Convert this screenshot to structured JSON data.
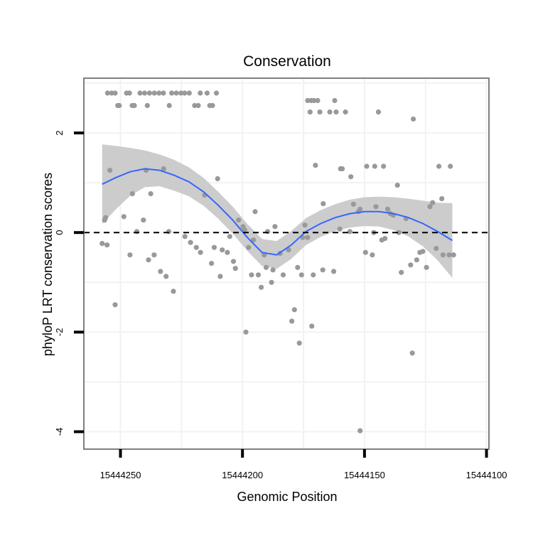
{
  "chart_data": {
    "type": "scatter",
    "title": "Conservation",
    "xlabel": "Genomic Position",
    "ylabel": "phyloP LRT conservation scores",
    "x_reversed": true,
    "xlim": [
      15444265,
      15444099
    ],
    "ylim": [
      -4.35,
      3.1
    ],
    "x_ticks": [
      15444250,
      15444200,
      15444150,
      15444100
    ],
    "x_tick_labels": [
      "15444250",
      "15444200",
      "15444150",
      "15444100"
    ],
    "y_ticks": [
      -4,
      -2,
      0,
      2
    ],
    "y_tick_labels": [
      "-4",
      "-2",
      "0",
      "2"
    ],
    "reference_line": {
      "y": 0,
      "style": "dashed"
    },
    "colors": {
      "points": "#999999",
      "smooth": "#3366ff",
      "ribbon": "#cccccc",
      "frame": "#7f7f7f",
      "grid": "#f2f2f2"
    },
    "points": [
      [
        15444255.3,
        2.8
      ],
      [
        15444253.6,
        2.8
      ],
      [
        15444252.2,
        2.8
      ],
      [
        15444251.1,
        2.55
      ],
      [
        15444250.5,
        2.55
      ],
      [
        15444247.5,
        2.8
      ],
      [
        15444246.3,
        2.8
      ],
      [
        15444245.2,
        2.55
      ],
      [
        15444244.3,
        2.55
      ],
      [
        15444242,
        2.8
      ],
      [
        15444240.1,
        2.8
      ],
      [
        15444239,
        2.55
      ],
      [
        15444238.1,
        2.8
      ],
      [
        15444236.1,
        2.8
      ],
      [
        15444234.2,
        2.8
      ],
      [
        15444232.4,
        2.8
      ],
      [
        15444230,
        2.55
      ],
      [
        15444229,
        2.8
      ],
      [
        15444227.1,
        2.8
      ],
      [
        15444225.2,
        2.8
      ],
      [
        15444223.7,
        2.8
      ],
      [
        15444221.8,
        2.8
      ],
      [
        15444219.6,
        2.55
      ],
      [
        15444218.1,
        2.55
      ],
      [
        15444217.3,
        2.8
      ],
      [
        15444214.5,
        2.8
      ],
      [
        15444213.4,
        2.55
      ],
      [
        15444212.3,
        2.55
      ],
      [
        15444210.7,
        2.8
      ],
      [
        15444173.3,
        2.65
      ],
      [
        15444172.3,
        2.42
      ],
      [
        15444171.9,
        2.65
      ],
      [
        15444170.7,
        2.65
      ],
      [
        15444169.2,
        2.65
      ],
      [
        15444168.3,
        2.42
      ],
      [
        15444164.2,
        2.42
      ],
      [
        15444162.2,
        2.65
      ],
      [
        15444161.6,
        2.42
      ],
      [
        15444157.8,
        2.42
      ],
      [
        15444144.3,
        2.42
      ],
      [
        15444130,
        2.28
      ],
      [
        15444257.5,
        -0.22
      ],
      [
        15444256.5,
        0.25
      ],
      [
        15444256.1,
        0.3
      ],
      [
        15444255.5,
        -0.25
      ],
      [
        15444254.3,
        1.25
      ],
      [
        15444252.2,
        -1.45
      ],
      [
        15444248.6,
        0.32
      ],
      [
        15444246.1,
        -0.45
      ],
      [
        15444245.1,
        0.78
      ],
      [
        15444243.3,
        0.02
      ],
      [
        15444240.6,
        0.25
      ],
      [
        15444239.5,
        1.25
      ],
      [
        15444238.5,
        -0.55
      ],
      [
        15444237.6,
        0.78
      ],
      [
        15444236.2,
        -0.45
      ],
      [
        15444233.6,
        -0.78
      ],
      [
        15444232.3,
        1.28
      ],
      [
        15444231.3,
        -0.88
      ],
      [
        15444230.2,
        0.02
      ],
      [
        15444228.3,
        -1.18
      ],
      [
        15444223.6,
        -0.08
      ],
      [
        15444221.3,
        -0.2
      ],
      [
        15444218.9,
        -0.3
      ],
      [
        15444217.2,
        -0.4
      ],
      [
        15444215.5,
        0.75
      ],
      [
        15444212.7,
        -0.62
      ],
      [
        15444211.6,
        -0.3
      ],
      [
        15444210.2,
        1.08
      ],
      [
        15444209.1,
        -0.88
      ],
      [
        15444208.3,
        -0.35
      ],
      [
        15444206.2,
        -0.4
      ],
      [
        15444205.2,
        -0.08
      ],
      [
        15444203.7,
        -0.58
      ],
      [
        15444202.9,
        -0.72
      ],
      [
        15444201.6,
        0.25
      ],
      [
        15444199.8,
        0.12
      ],
      [
        15444199.1,
        0.05
      ],
      [
        15444198.6,
        -2.0
      ],
      [
        15444197.5,
        -0.3
      ],
      [
        15444196.3,
        -0.85
      ],
      [
        15444195.5,
        -0.15
      ],
      [
        15444194.8,
        0.42
      ],
      [
        15444193.5,
        -0.85
      ],
      [
        15444192.3,
        -1.1
      ],
      [
        15444191.1,
        -0.45
      ],
      [
        15444190.3,
        -0.7
      ],
      [
        15444189.7,
        0.02
      ],
      [
        15444188.1,
        -1.0
      ],
      [
        15444187.5,
        -0.75
      ],
      [
        15444186.7,
        0.12
      ],
      [
        15444184.6,
        -0.42
      ],
      [
        15444183.3,
        -0.85
      ],
      [
        15444181.1,
        -0.35
      ],
      [
        15444179.8,
        -1.78
      ],
      [
        15444178.7,
        -1.55
      ],
      [
        15444177.4,
        -0.7
      ],
      [
        15444176.7,
        -2.22
      ],
      [
        15444175.8,
        -0.85
      ],
      [
        15444175.3,
        -0.1
      ],
      [
        15444174.4,
        0.15
      ],
      [
        15444173.3,
        -0.1
      ],
      [
        15444171.6,
        -1.88
      ],
      [
        15444171,
        -0.85
      ],
      [
        15444170.1,
        1.35
      ],
      [
        15444167.1,
        -0.75
      ],
      [
        15444166.9,
        0.58
      ],
      [
        15444162.6,
        -0.78
      ],
      [
        15444160.1,
        0.07
      ],
      [
        15444159.8,
        1.28
      ],
      [
        15444159.1,
        1.28
      ],
      [
        15444156,
        0.02
      ],
      [
        15444155.6,
        1.12
      ],
      [
        15444154.5,
        0.57
      ],
      [
        15444152.5,
        0.42
      ],
      [
        15444151.8,
        0.47
      ],
      [
        15444151.8,
        -3.98
      ],
      [
        15444149.6,
        -0.4
      ],
      [
        15444149.1,
        1.33
      ],
      [
        15444146.8,
        -0.45
      ],
      [
        15444146.2,
        0.0
      ],
      [
        15444145.8,
        1.33
      ],
      [
        15444145.3,
        0.52
      ],
      [
        15444142.9,
        -0.15
      ],
      [
        15444142.2,
        1.33
      ],
      [
        15444141.6,
        -0.12
      ],
      [
        15444140.5,
        0.47
      ],
      [
        15444139.4,
        0.38
      ],
      [
        15444138.2,
        0.35
      ],
      [
        15444136.5,
        0.95
      ],
      [
        15444135.9,
        0.0
      ],
      [
        15444134.9,
        -0.8
      ],
      [
        15444133,
        0.28
      ],
      [
        15444131.1,
        -0.65
      ],
      [
        15444130.4,
        -2.42
      ],
      [
        15444128.6,
        -0.55
      ],
      [
        15444127.3,
        -0.4
      ],
      [
        15444126.1,
        -0.38
      ],
      [
        15444124.6,
        -0.7
      ],
      [
        15444123.2,
        0.52
      ],
      [
        15444122.1,
        0.6
      ],
      [
        15444120.6,
        -0.32
      ],
      [
        15444119.5,
        1.33
      ],
      [
        15444118.3,
        0.68
      ],
      [
        15444117.8,
        -0.45
      ],
      [
        15444115.3,
        -0.45
      ],
      [
        15444114.8,
        1.33
      ],
      [
        15444113.5,
        -0.45
      ]
    ],
    "smooth": {
      "x": [
        15444257.5,
        15444252,
        15444246,
        15444240,
        15444234,
        15444228,
        15444222,
        15444216,
        15444210,
        15444204,
        15444198,
        15444192,
        15444186,
        15444180,
        15444174,
        15444168,
        15444162,
        15444156,
        15444150,
        15444144,
        15444138,
        15444132,
        15444126,
        15444120,
        15444114
      ],
      "y": [
        0.97,
        1.1,
        1.22,
        1.28,
        1.25,
        1.15,
        1.02,
        0.82,
        0.55,
        0.25,
        -0.1,
        -0.4,
        -0.45,
        -0.25,
        0.02,
        0.18,
        0.3,
        0.38,
        0.42,
        0.42,
        0.38,
        0.3,
        0.18,
        0.02,
        -0.16
      ],
      "se": [
        0.8,
        0.64,
        0.48,
        0.37,
        0.32,
        0.31,
        0.29,
        0.28,
        0.27,
        0.27,
        0.27,
        0.27,
        0.28,
        0.28,
        0.27,
        0.27,
        0.27,
        0.28,
        0.29,
        0.3,
        0.33,
        0.38,
        0.46,
        0.58,
        0.75
      ]
    }
  }
}
